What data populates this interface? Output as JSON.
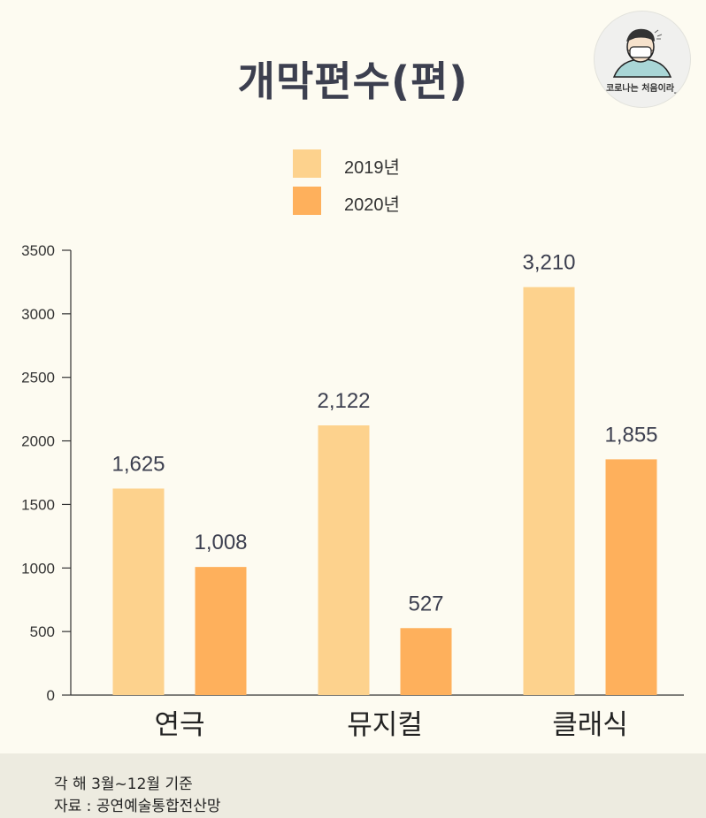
{
  "header": {
    "title": "개막편수(편)",
    "logo_text": "코로나는 처음이라_"
  },
  "colors": {
    "series_2019": "#fdd28d",
    "series_2020": "#feb05c",
    "background": "#fdfbf1",
    "footer_background": "#edebe0",
    "axis": "#333333"
  },
  "chart_data": {
    "type": "bar",
    "title": "개막편수(편)",
    "categories": [
      "연극",
      "뮤지컬",
      "클래식"
    ],
    "series": [
      {
        "name": "2019년",
        "values": [
          1625,
          2122,
          3210
        ],
        "labels": [
          "1,625",
          "2,122",
          "3,210"
        ]
      },
      {
        "name": "2020년",
        "values": [
          1008,
          527,
          1855
        ],
        "labels": [
          "1,008",
          "527",
          "1,855"
        ]
      }
    ],
    "ylim": [
      0,
      3500
    ],
    "yticks": [
      0,
      500,
      1000,
      1500,
      2000,
      2500,
      3000,
      3500
    ],
    "ytick_labels": [
      "0",
      "500",
      "1000",
      "1500",
      "2000",
      "2500",
      "3000",
      "3500"
    ],
    "xlabel": "",
    "ylabel": "",
    "grid": false,
    "legend": "top-center"
  },
  "footer": {
    "line1": "각 해 3월~12월 기준",
    "line2": "자료 : 공연예술통합전산망"
  }
}
